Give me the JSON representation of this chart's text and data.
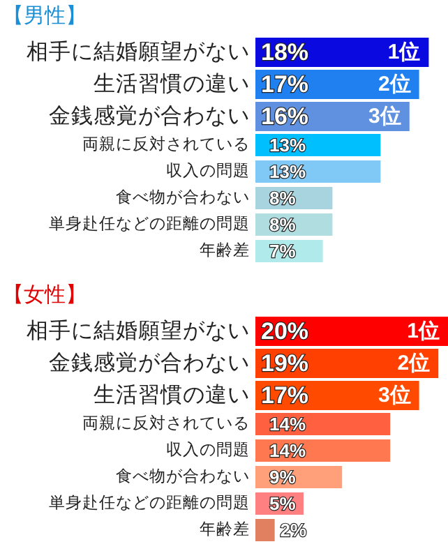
{
  "chart_data": [
    {
      "type": "bar",
      "orientation": "horizontal",
      "title": "【男性】",
      "data_labels": true,
      "value_labels": [
        "18%",
        "17%",
        "16%",
        "13%",
        "13%",
        "8%",
        "8%",
        "7%"
      ],
      "categories": [
        "相手に結婚願望がない",
        "生活習慣の違い",
        "金銭感覚が合わない",
        "両親に反対されている",
        "収入の問題",
        "食べ物が合わない",
        "単身赴任などの距離の問題",
        "年齢差"
      ],
      "values": [
        18,
        17,
        16,
        13,
        13,
        8,
        8,
        7
      ],
      "colors": [
        "#0a0ae0",
        "#2080f0",
        "#6090e0",
        "#00bfff",
        "#80c8f5",
        "#a8d4e0",
        "#b0dde0",
        "#b0eaea"
      ],
      "annotations": [
        {
          "text": "1位",
          "x": 18,
          "y": "相手に結婚願望がない"
        },
        {
          "text": "2位",
          "x": 17,
          "y": "生活習慣の違い"
        },
        {
          "text": "3位",
          "x": 16,
          "y": "金銭感覚が合わない"
        }
      ]
    },
    {
      "type": "bar",
      "orientation": "horizontal",
      "title": "【女性】",
      "data_labels": true,
      "value_labels": [
        "20%",
        "19%",
        "17%",
        "14%",
        "14%",
        "9%",
        "5%",
        "2%"
      ],
      "categories": [
        "相手に結婚願望がない",
        "金銭感覚が合わない",
        "生活習慣の違い",
        "両親に反対されている",
        "収入の問題",
        "食べ物が合わない",
        "単身赴任などの距離の問題",
        "年齢差"
      ],
      "values": [
        20,
        19,
        17,
        14,
        14,
        9,
        5,
        2
      ],
      "colors": [
        "#ff0000",
        "#ff4000",
        "#ff4a00",
        "#ff6040",
        "#ff7850",
        "#ffa07a",
        "#ff8080",
        "#e08060"
      ],
      "annotations": [
        {
          "text": "1位",
          "x": 20,
          "y": "相手に結婚願望がない"
        },
        {
          "text": "2位",
          "x": 19,
          "y": "金銭感覚が合わない"
        },
        {
          "text": "3位",
          "x": 17,
          "y": "生活習慣の違い"
        }
      ]
    }
  ]
}
